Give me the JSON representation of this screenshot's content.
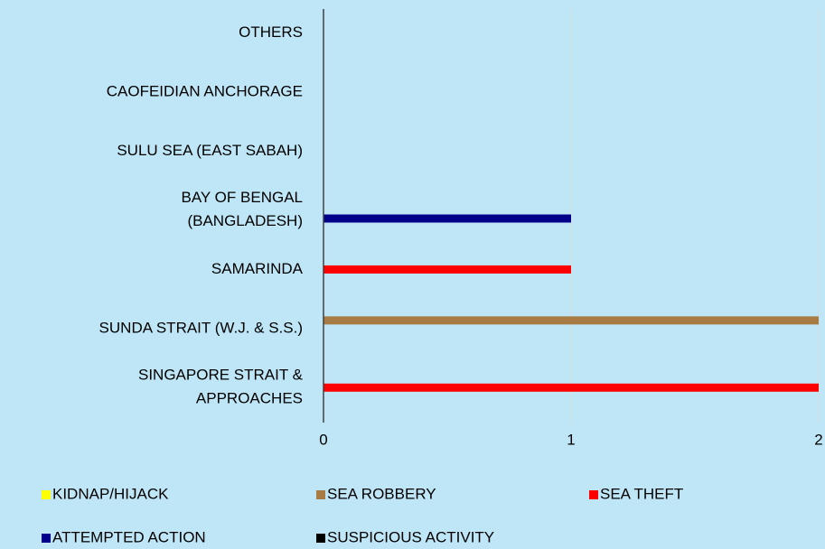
{
  "chart_data": {
    "type": "bar",
    "orientation": "horizontal",
    "categories": [
      "SINGAPORE STRAIT &\nAPPROACHES",
      "SUNDA STRAIT (W.J. & S.S.)",
      "SAMARINDA",
      "BAY OF BENGAL\n(BANGLADESH)",
      "SULU SEA (EAST SABAH)",
      "CAOFEIDIAN ANCHORAGE",
      "OTHERS"
    ],
    "series": [
      {
        "name": "KIDNAP/HIJACK",
        "color": "#ffff00",
        "values": [
          0,
          0,
          0,
          0,
          0,
          0,
          0
        ]
      },
      {
        "name": "SEA ROBBERY",
        "color": "#a87a44",
        "values": [
          0,
          2,
          0,
          0,
          0,
          0,
          0
        ]
      },
      {
        "name": "SEA THEFT",
        "color": "#ff0000",
        "values": [
          2,
          0,
          1,
          0,
          0,
          0,
          0
        ]
      },
      {
        "name": "ATTEMPTED ACTION",
        "color": "#00008b",
        "values": [
          0,
          0,
          0,
          1,
          0,
          0,
          0
        ]
      },
      {
        "name": "SUSPICIOUS ACTIVITY",
        "color": "#000000",
        "values": [
          0,
          0,
          0,
          0,
          0,
          0,
          0
        ]
      }
    ],
    "xlim": [
      0,
      2
    ],
    "xticks": [
      0,
      1,
      2
    ],
    "grid": true,
    "legend": "bottom"
  }
}
